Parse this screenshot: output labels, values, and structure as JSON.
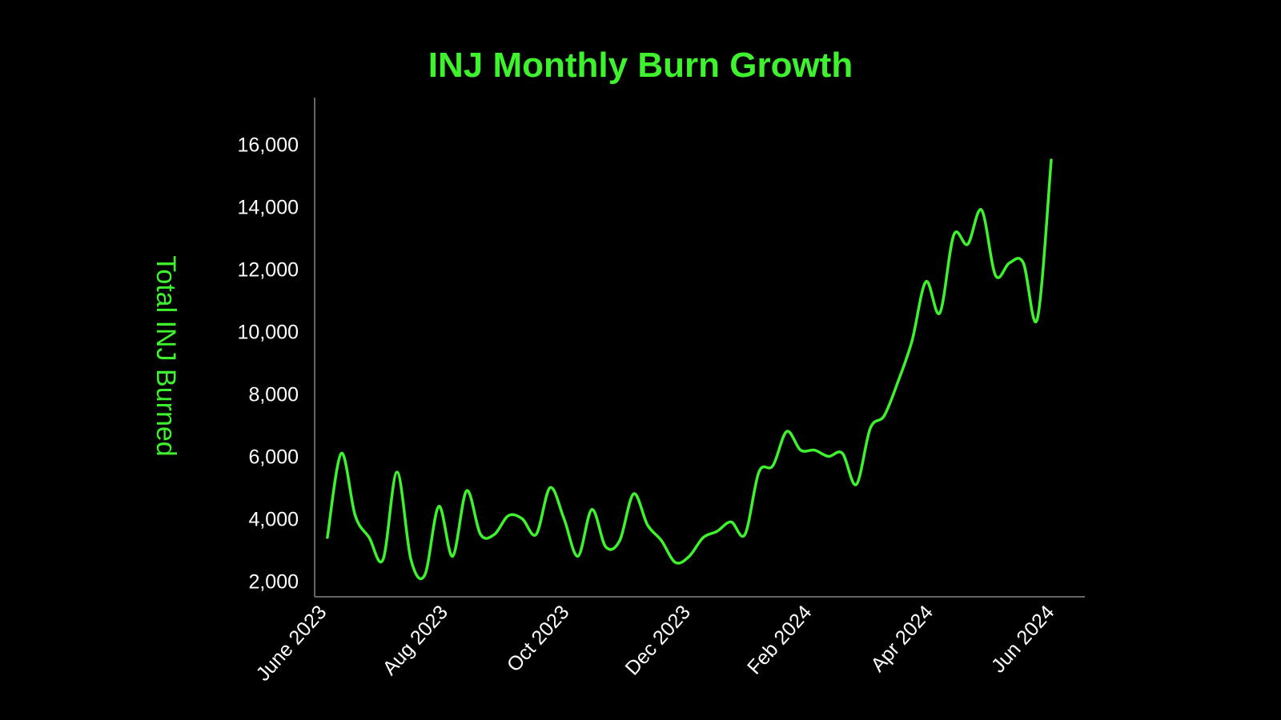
{
  "chart_data": {
    "type": "line",
    "title": "INJ Monthly Burn Growth",
    "xlabel": "",
    "ylabel": "Total INJ Burned",
    "x_tick_labels": [
      "June 2023",
      "Aug 2023",
      "Oct 2023",
      "Dec 2023",
      "Feb 2024",
      "Apr 2024",
      "Jun 2024"
    ],
    "x_range": [
      "2023-06-01",
      "2024-06-01"
    ],
    "y_ticks": [
      "2,000",
      "4,000",
      "6,000",
      "8,000",
      "10,000",
      "12,000",
      "14,000",
      "16,000"
    ],
    "ylim": [
      1500,
      17500
    ],
    "grid": false,
    "legend": "none",
    "colors": {
      "background": "#000000",
      "line": "#3ef22d",
      "title": "#3ef22d",
      "ylabel": "#3ef22d",
      "axis": "#666666",
      "tick_text": "#ffffff"
    },
    "series": [
      {
        "x": [
          "2023-06-05",
          "2023-06-12",
          "2023-06-19",
          "2023-06-26",
          "2023-07-03",
          "2023-07-10",
          "2023-07-17",
          "2023-07-24",
          "2023-07-31",
          "2023-08-07",
          "2023-08-14",
          "2023-08-21",
          "2023-08-28",
          "2023-09-04",
          "2023-09-11",
          "2023-09-18",
          "2023-09-25",
          "2023-10-02",
          "2023-10-09",
          "2023-10-16",
          "2023-10-23",
          "2023-10-30",
          "2023-11-06",
          "2023-11-13",
          "2023-11-20",
          "2023-11-27",
          "2023-12-04",
          "2023-12-11",
          "2023-12-18",
          "2023-12-25",
          "2024-01-01",
          "2024-01-08",
          "2024-01-15",
          "2024-01-22",
          "2024-01-29",
          "2024-02-05",
          "2024-02-12",
          "2024-02-19",
          "2024-02-26",
          "2024-03-04",
          "2024-03-11",
          "2024-03-18",
          "2024-03-25",
          "2024-04-01",
          "2024-04-08",
          "2024-04-15",
          "2024-04-22",
          "2024-04-29",
          "2024-05-06",
          "2024-05-13",
          "2024-05-20",
          "2024-05-27",
          "2024-06-03"
        ],
        "values": [
          3400,
          6100,
          4100,
          3400,
          2700,
          5500,
          2700,
          2200,
          4400,
          2800,
          4900,
          3500,
          3500,
          4100,
          4000,
          3500,
          5000,
          4000,
          2800,
          4300,
          3100,
          3300,
          4800,
          3800,
          3300,
          2600,
          2800,
          3400,
          3600,
          3900,
          3500,
          5500,
          5700,
          6800,
          6200,
          6200,
          6000,
          6100,
          5100,
          6900,
          7300,
          8400,
          9700,
          11600,
          10600,
          13100,
          12800,
          13900,
          11800,
          12200,
          12200,
          10400,
          15500
        ]
      }
    ]
  }
}
